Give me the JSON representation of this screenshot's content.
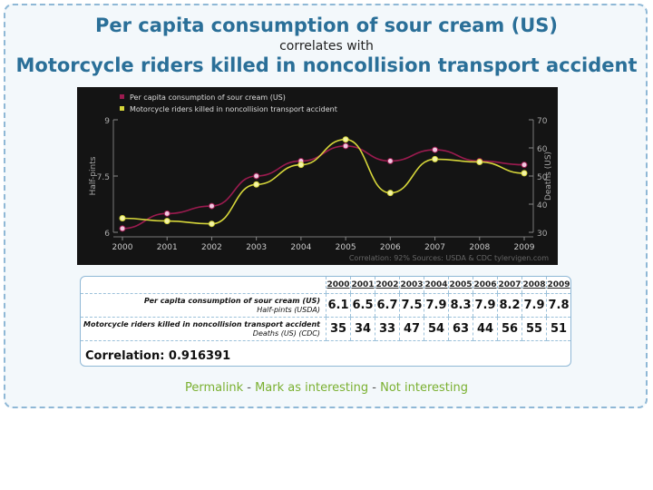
{
  "header": {
    "title_1": "Per capita consumption of sour cream (US)",
    "subtitle": "correlates with",
    "title_2": "Motorcycle riders killed in noncollision transport accident"
  },
  "chart_data": {
    "type": "line",
    "x": [
      "2000",
      "2001",
      "2002",
      "2003",
      "2004",
      "2005",
      "2006",
      "2007",
      "2008",
      "2009"
    ],
    "series": [
      {
        "name": "Per capita consumption of sour cream (US)",
        "axis": "left",
        "color": "#9b1b4f",
        "values": [
          6.1,
          6.5,
          6.7,
          7.5,
          7.9,
          8.3,
          7.9,
          8.2,
          7.9,
          7.8
        ]
      },
      {
        "name": "Motorcycle riders killed in noncollision transport accident",
        "axis": "right",
        "color": "#d6d63a",
        "values": [
          35,
          34,
          33,
          47,
          54,
          63,
          44,
          56,
          55,
          51
        ]
      }
    ],
    "ylabel_left": "Half-pints",
    "ylabel_right": "Deaths (US)",
    "ylim_left": [
      6,
      9
    ],
    "yticks_left": [
      "6",
      "7.5",
      "9"
    ],
    "ylim_right": [
      30,
      70
    ],
    "yticks_right": [
      "30",
      "40",
      "50",
      "60",
      "70"
    ],
    "legend": "top-left",
    "footer": "Correlation: 92%   Sources: USDA & CDC   tylervigen.com",
    "background": "#141414"
  },
  "table": {
    "years": [
      "2000",
      "2001",
      "2002",
      "2003",
      "2004",
      "2005",
      "2006",
      "2007",
      "2008",
      "2009"
    ],
    "rows": [
      {
        "label": "Per capita consumption of sour cream (US)",
        "unit": "Half-pints (USDA)",
        "values": [
          "6.1",
          "6.5",
          "6.7",
          "7.5",
          "7.9",
          "8.3",
          "7.9",
          "8.2",
          "7.9",
          "7.8"
        ]
      },
      {
        "label": "Motorcycle riders killed in noncollision transport accident",
        "unit": "Deaths (US) (CDC)",
        "values": [
          "35",
          "34",
          "33",
          "47",
          "54",
          "63",
          "44",
          "56",
          "55",
          "51"
        ]
      }
    ],
    "correlation": "Correlation: 0.916391"
  },
  "links": {
    "permalink": "Permalink",
    "sep": " - ",
    "mark": "Mark as interesting",
    "not": "Not interesting"
  }
}
